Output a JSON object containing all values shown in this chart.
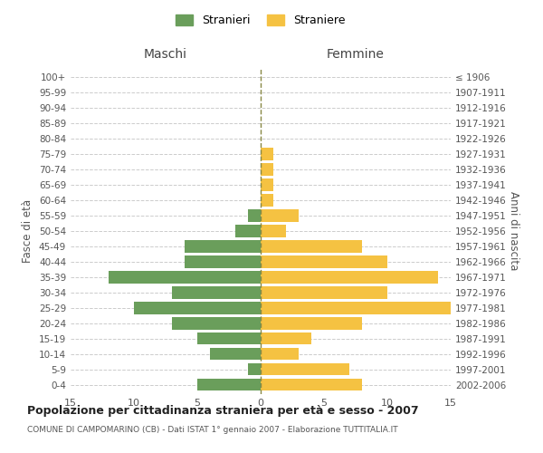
{
  "age_groups": [
    "0-4",
    "5-9",
    "10-14",
    "15-19",
    "20-24",
    "25-29",
    "30-34",
    "35-39",
    "40-44",
    "45-49",
    "50-54",
    "55-59",
    "60-64",
    "65-69",
    "70-74",
    "75-79",
    "80-84",
    "85-89",
    "90-94",
    "95-99",
    "100+"
  ],
  "birth_years": [
    "2002-2006",
    "1997-2001",
    "1992-1996",
    "1987-1991",
    "1982-1986",
    "1977-1981",
    "1972-1976",
    "1967-1971",
    "1962-1966",
    "1957-1961",
    "1952-1956",
    "1947-1951",
    "1942-1946",
    "1937-1941",
    "1932-1936",
    "1927-1931",
    "1922-1926",
    "1917-1921",
    "1912-1916",
    "1907-1911",
    "≤ 1906"
  ],
  "maschi": [
    5,
    1,
    4,
    5,
    7,
    10,
    7,
    12,
    6,
    6,
    2,
    1,
    0,
    0,
    0,
    0,
    0,
    0,
    0,
    0,
    0
  ],
  "femmine": [
    8,
    7,
    3,
    4,
    8,
    15,
    10,
    14,
    10,
    8,
    2,
    3,
    1,
    1,
    1,
    1,
    0,
    0,
    0,
    0,
    0
  ],
  "maschi_color": "#6a9e5b",
  "femmine_color": "#f5c242",
  "title": "Popolazione per cittadinanza straniera per età e sesso - 2007",
  "subtitle": "COMUNE DI CAMPOMARINO (CB) - Dati ISTAT 1° gennaio 2007 - Elaborazione TUTTITALIA.IT",
  "xlabel_left": "Maschi",
  "xlabel_right": "Femmine",
  "ylabel_left": "Fasce di età",
  "ylabel_right": "Anni di nascita",
  "xlim": 15,
  "legend_stranieri": "Stranieri",
  "legend_straniere": "Straniere",
  "background_color": "#ffffff",
  "grid_color": "#cccccc"
}
